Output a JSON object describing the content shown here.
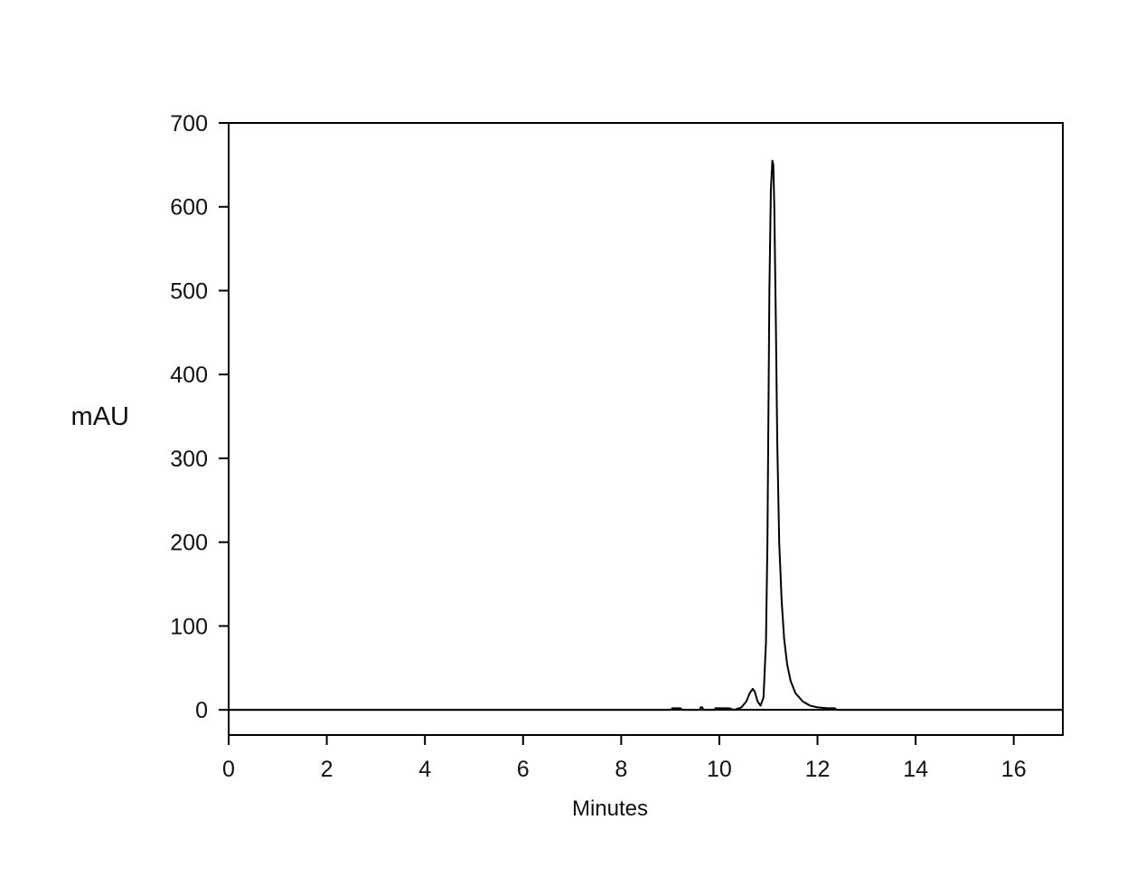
{
  "chart_data": {
    "type": "line",
    "title": "",
    "xlabel": "Minutes",
    "ylabel": "mAU",
    "xlim": [
      0,
      17
    ],
    "ylim": [
      -30,
      700
    ],
    "xticks": [
      0,
      2,
      4,
      6,
      8,
      10,
      12,
      14,
      16
    ],
    "yticks": [
      0,
      100,
      200,
      300,
      400,
      500,
      600,
      700
    ],
    "xtick_labels": [
      "0",
      "2",
      "4",
      "6",
      "8",
      "10",
      "12",
      "14",
      "16"
    ],
    "ytick_labels": [
      "0",
      "100",
      "200",
      "300",
      "400",
      "500",
      "600",
      "700"
    ],
    "grid": false,
    "line_color": "#000000",
    "series": [
      {
        "x": [
          0,
          9.0,
          9.05,
          9.2,
          9.25,
          9.6,
          9.62,
          9.65,
          9.68,
          9.9,
          9.92,
          10.2,
          10.3,
          10.45,
          10.55,
          10.62,
          10.68,
          10.72,
          10.78,
          10.84,
          10.9,
          10.95,
          10.98,
          11.0,
          11.02,
          11.05,
          11.08,
          11.1,
          11.12,
          11.15,
          11.18,
          11.22,
          11.27,
          11.32,
          11.38,
          11.45,
          11.55,
          11.7,
          11.85,
          12.0,
          12.2,
          12.35,
          12.4,
          13.0,
          17.0
        ],
        "y": [
          0,
          0,
          2,
          2,
          0,
          0,
          3,
          3,
          0,
          0,
          2,
          2,
          0,
          3,
          10,
          20,
          25,
          22,
          10,
          5,
          15,
          80,
          200,
          350,
          500,
          620,
          655,
          650,
          600,
          470,
          320,
          200,
          130,
          85,
          55,
          35,
          20,
          10,
          5,
          3,
          2,
          2,
          0,
          0,
          0
        ]
      }
    ]
  }
}
